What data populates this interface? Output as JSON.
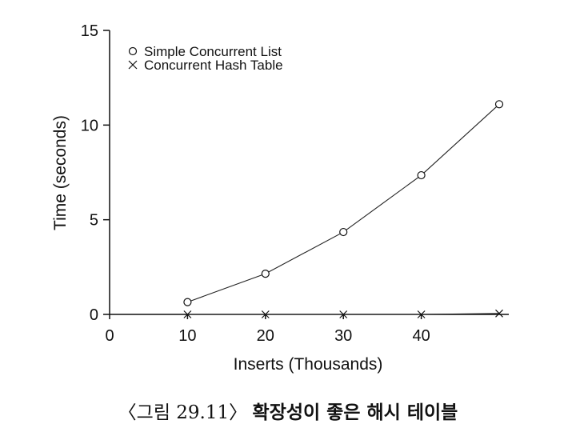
{
  "chart_data": {
    "type": "line",
    "xlabel": "Inserts (Thousands)",
    "ylabel": "Time (seconds)",
    "xlim": [
      0,
      50
    ],
    "ylim": [
      0,
      15
    ],
    "x_ticks": [
      0,
      10,
      20,
      30,
      40
    ],
    "y_ticks": [
      0,
      5,
      10,
      15
    ],
    "grid": false,
    "legend_position": "top-left",
    "series": [
      {
        "name": "Simple Concurrent List",
        "marker": "circle",
        "x": [
          10,
          20,
          30,
          40,
          50
        ],
        "values": [
          0.65,
          2.15,
          4.35,
          7.35,
          11.1
        ]
      },
      {
        "name": "Concurrent Hash Table",
        "marker": "cross",
        "x": [
          10,
          20,
          30,
          40,
          50
        ],
        "values": [
          0.0,
          0.0,
          0.0,
          0.0,
          0.05
        ]
      }
    ]
  },
  "caption": {
    "label": "〈그림 29.11〉",
    "title": "확장성이 좋은 해시 테이블"
  }
}
